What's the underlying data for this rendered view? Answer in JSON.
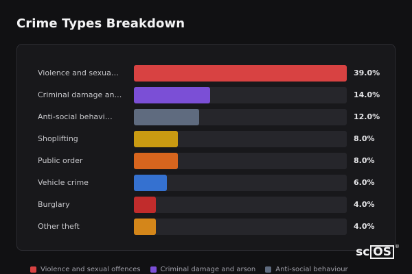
{
  "title": "Crime Types Breakdown",
  "chart_data": {
    "type": "bar",
    "orientation": "horizontal",
    "title": "Crime Types Breakdown",
    "categories": [
      "Violence and sexua…",
      "Criminal damage an…",
      "Anti-social behavi…",
      "Shoplifting",
      "Public order",
      "Vehicle crime",
      "Burglary",
      "Other theft"
    ],
    "values": [
      39.0,
      14.0,
      12.0,
      8.0,
      8.0,
      6.0,
      4.0,
      4.0
    ],
    "value_labels": [
      "39.0%",
      "14.0%",
      "12.0%",
      "8.0%",
      "8.0%",
      "6.0%",
      "4.0%",
      "4.0%"
    ],
    "colors": [
      "#d84242",
      "#7b4fd6",
      "#5f6b7f",
      "#c99a12",
      "#d7651e",
      "#3571d0",
      "#c12c2c",
      "#d4861a"
    ],
    "xlim": [
      0,
      39.0
    ],
    "legend": [
      {
        "label": "Violence and sexual offences",
        "color": "#d84242"
      },
      {
        "label": "Criminal damage and arson",
        "color": "#7b4fd6"
      },
      {
        "label": "Anti-social behaviour",
        "color": "#5f6b7f"
      }
    ],
    "legend_position": "bottom"
  },
  "logo": {
    "text_sc": "sc",
    "text_os": "OS",
    "reg": "®"
  }
}
